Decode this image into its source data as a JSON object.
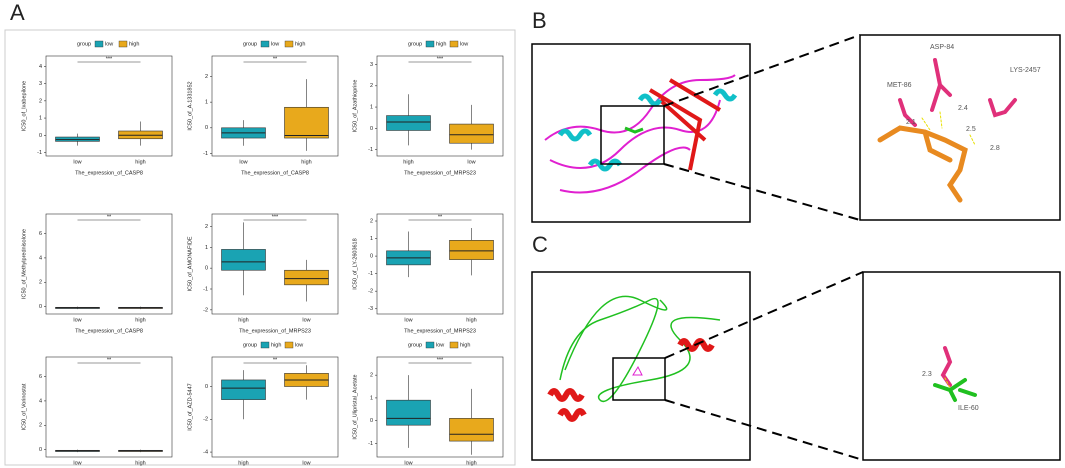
{
  "panels": {
    "A": {
      "label": "A",
      "plots": [
        {
          "legend_title": "group",
          "legend": [
            {
              "name": "low",
              "color": "#1aa3b3"
            },
            {
              "name": "high",
              "color": "#e8a91c"
            }
          ],
          "y_label": "IC50_of_Ixabepilone",
          "x_label": "The_expression_of_CASP8",
          "sig": "***",
          "ylim": [
            -1.2,
            4.6
          ],
          "yticks": [
            -1,
            0,
            1,
            2,
            3,
            4
          ],
          "groups": [
            {
              "name": "low",
              "color": "#1aa3b3",
              "box": [
                -0.6,
                -0.35,
                -0.25,
                -0.1,
                0.1
              ]
            },
            {
              "name": "high",
              "color": "#e8a91c",
              "box": [
                -0.6,
                -0.2,
                0,
                0.25,
                0.8
              ]
            }
          ]
        },
        {
          "legend_title": "group",
          "legend": [
            {
              "name": "low",
              "color": "#1aa3b3"
            },
            {
              "name": "high",
              "color": "#e8a91c"
            }
          ],
          "y_label": "IC50_of_A-1331852",
          "x_label": "The_expression_of_CASP8",
          "sig": "**",
          "ylim": [
            -1.1,
            2.8
          ],
          "yticks": [
            -1,
            0,
            1,
            2
          ],
          "groups": [
            {
              "name": "low",
              "color": "#1aa3b3",
              "box": [
                -0.7,
                -0.4,
                -0.2,
                0,
                0.3
              ]
            },
            {
              "name": "high",
              "color": "#e8a91c",
              "box": [
                -0.9,
                -0.4,
                -0.3,
                0.8,
                1.9
              ]
            }
          ]
        },
        {
          "legend_title": "group",
          "legend": [
            {
              "name": "high",
              "color": "#1aa3b3"
            },
            {
              "name": "low",
              "color": "#e8a91c"
            }
          ],
          "y_label": "IC50_of_Azathioprine",
          "x_label": "The_expression_of_MRPS23",
          "sig": "***",
          "ylim": [
            -1.3,
            3.4
          ],
          "yticks": [
            -1,
            0,
            1,
            2,
            3
          ],
          "groups": [
            {
              "name": "high",
              "color": "#1aa3b3",
              "box": [
                -0.8,
                -0.1,
                0.3,
                0.6,
                1.6
              ]
            },
            {
              "name": "low",
              "color": "#e8a91c",
              "box": [
                -1,
                -0.7,
                -0.3,
                0.2,
                1.1
              ]
            }
          ]
        },
        {
          "y_label": "IC50_of_Methylprednisolone",
          "x_label": "The_expression_of_CASP8",
          "sig": "**",
          "ylim": [
            -0.6,
            7.6
          ],
          "yticks": [
            0,
            2,
            4,
            6
          ],
          "groups": [
            {
              "name": "low",
              "color": "#1aa3b3",
              "box": [
                -0.2,
                -0.15,
                -0.1,
                -0.05,
                0
              ]
            },
            {
              "name": "high",
              "color": "#e8a91c",
              "box": [
                -0.2,
                -0.15,
                -0.1,
                -0.05,
                0
              ]
            }
          ]
        },
        {
          "y_label": "IC50_of_AMONAFIDE",
          "x_label": "The_expression_of_MRPS23",
          "sig": "***",
          "ylim": [
            -2.2,
            2.6
          ],
          "yticks": [
            -2,
            -1,
            0,
            1,
            2
          ],
          "groups": [
            {
              "name": "high",
              "color": "#1aa3b3",
              "box": [
                -1.3,
                -0.1,
                0.3,
                0.9,
                2.2
              ]
            },
            {
              "name": "low",
              "color": "#e8a91c",
              "box": [
                -1.6,
                -0.8,
                -0.5,
                -0.1,
                0.4
              ]
            }
          ]
        },
        {
          "y_label": "IC50_of_LY-2603618",
          "x_label": "The_expression_of_MRPS23",
          "sig": "**",
          "ylim": [
            -3.3,
            2.4
          ],
          "yticks": [
            -3,
            -2,
            -1,
            0,
            1,
            2
          ],
          "groups": [
            {
              "name": "low",
              "color": "#1aa3b3",
              "box": [
                -1.2,
                -0.5,
                -0.1,
                0.3,
                1.4
              ]
            },
            {
              "name": "high",
              "color": "#e8a91c",
              "box": [
                -1.1,
                -0.2,
                0.3,
                0.9,
                1.6
              ]
            }
          ]
        },
        {
          "y_label": "IC50_of_Vorinostat",
          "x_label": "The_expression_of_CASP8",
          "sig": "**",
          "ylim": [
            -0.6,
            7.6
          ],
          "yticks": [
            0,
            2,
            4,
            6
          ],
          "groups": [
            {
              "name": "low",
              "color": "#1aa3b3",
              "box": [
                -0.2,
                -0.15,
                -0.1,
                -0.05,
                0
              ]
            },
            {
              "name": "high",
              "color": "#e8a91c",
              "box": [
                -0.2,
                -0.15,
                -0.1,
                -0.05,
                0
              ]
            }
          ]
        },
        {
          "legend_title": "group",
          "legend": [
            {
              "name": "high",
              "color": "#1aa3b3"
            },
            {
              "name": "low",
              "color": "#e8a91c"
            }
          ],
          "y_label": "IC50_of_AZD-5447",
          "x_label": "The_expression_of_MRPS23",
          "sig": "**",
          "ylim": [
            -4.3,
            1.8
          ],
          "yticks": [
            -4,
            -2,
            0
          ],
          "groups": [
            {
              "name": "high",
              "color": "#1aa3b3",
              "box": [
                -2,
                -0.8,
                -0.1,
                0.4,
                1
              ]
            },
            {
              "name": "low",
              "color": "#e8a91c",
              "box": [
                -0.8,
                0,
                0.4,
                0.8,
                1.3
              ]
            }
          ]
        },
        {
          "legend_title": "group",
          "legend": [
            {
              "name": "low",
              "color": "#1aa3b3"
            },
            {
              "name": "high",
              "color": "#e8a91c"
            }
          ],
          "y_label": "IC50_of_Ulipristal_Acetate",
          "x_label": "The_expression_of_CASP8",
          "sig": "***",
          "ylim": [
            -1.6,
            2.8
          ],
          "yticks": [
            -1,
            0,
            1,
            2
          ],
          "groups": [
            {
              "name": "low",
              "color": "#1aa3b3",
              "box": [
                -1.2,
                -0.2,
                0.1,
                0.9,
                2
              ]
            },
            {
              "name": "high",
              "color": "#e8a91c",
              "box": [
                -1.5,
                -0.9,
                -0.6,
                0.1,
                1.4
              ]
            }
          ]
        }
      ]
    },
    "B": {
      "label": "B",
      "residues": [
        "ASP-84",
        "MET-86",
        "LYS-2457"
      ],
      "distances": [
        "2.4",
        "2.1",
        "2.5",
        "2.8"
      ]
    },
    "C": {
      "label": "C",
      "distances": [
        "2.3"
      ],
      "residues": [
        "ILE-60"
      ]
    }
  }
}
